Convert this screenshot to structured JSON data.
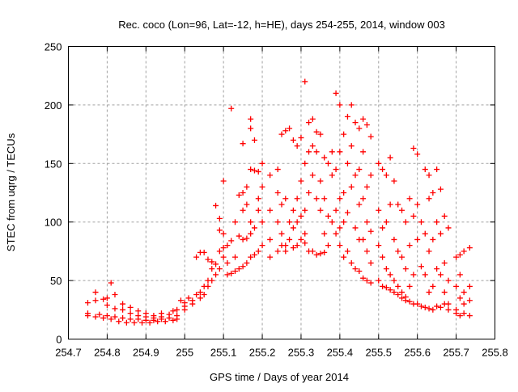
{
  "chart_data": {
    "type": "scatter",
    "title": "Rec. coco (Lon=96, Lat=-12, h=HE), days 254-255, 2014, window 003",
    "xlabel": "GPS time / Days of year 2014",
    "ylabel": "STEC from uqrg / TECUs",
    "xlim": [
      254.7,
      255.8
    ],
    "ylim": [
      0,
      250
    ],
    "grid": true,
    "legend": "none",
    "marker": "plus",
    "color": "#ff0000",
    "xticks": [
      "254.7",
      "254.8",
      "254.9",
      "255",
      "255.1",
      "255.2",
      "255.3",
      "255.4",
      "255.5",
      "255.6",
      "255.7",
      "255.8"
    ],
    "xtick_values": [
      254.7,
      254.8,
      254.9,
      255.0,
      255.1,
      255.2,
      255.3,
      255.4,
      255.5,
      255.6,
      255.7,
      255.8
    ],
    "yticks": [
      "0",
      "50",
      "100",
      "150",
      "200",
      "250"
    ],
    "ytick_values": [
      0,
      50,
      100,
      150,
      200,
      250
    ],
    "points": [
      [
        254.75,
        20
      ],
      [
        254.77,
        19
      ],
      [
        254.79,
        18
      ],
      [
        254.81,
        17
      ],
      [
        254.83,
        15
      ],
      [
        254.85,
        14
      ],
      [
        254.87,
        14
      ],
      [
        254.89,
        14
      ],
      [
        254.91,
        14
      ],
      [
        254.93,
        15
      ],
      [
        254.95,
        15
      ],
      [
        254.97,
        16
      ],
      [
        254.98,
        17
      ],
      [
        254.75,
        22
      ],
      [
        254.78,
        21
      ],
      [
        254.8,
        20
      ],
      [
        254.82,
        19
      ],
      [
        254.84,
        18
      ],
      [
        254.86,
        17
      ],
      [
        254.88,
        17
      ],
      [
        254.9,
        16
      ],
      [
        254.92,
        16
      ],
      [
        254.94,
        17
      ],
      [
        254.96,
        18
      ],
      [
        254.98,
        20
      ],
      [
        254.75,
        31
      ],
      [
        254.77,
        33
      ],
      [
        254.79,
        34
      ],
      [
        254.8,
        35
      ],
      [
        254.82,
        38
      ],
      [
        254.84,
        30
      ],
      [
        254.86,
        27
      ],
      [
        254.88,
        24
      ],
      [
        254.9,
        22
      ],
      [
        254.92,
        20
      ],
      [
        254.94,
        19
      ],
      [
        254.96,
        21
      ],
      [
        254.98,
        25
      ],
      [
        254.99,
        33
      ],
      [
        254.77,
        40
      ],
      [
        254.81,
        48
      ],
      [
        254.8,
        29
      ],
      [
        254.82,
        26
      ],
      [
        254.84,
        25
      ],
      [
        254.86,
        22
      ],
      [
        254.88,
        20
      ],
      [
        254.9,
        19
      ],
      [
        254.92,
        18
      ],
      [
        254.94,
        22
      ],
      [
        254.97,
        24
      ],
      [
        255.0,
        25
      ],
      [
        255.0,
        28
      ],
      [
        255.0,
        31
      ],
      [
        255.01,
        35
      ],
      [
        255.02,
        30
      ],
      [
        255.02,
        33
      ],
      [
        255.03,
        38
      ],
      [
        255.03,
        70
      ],
      [
        255.04,
        35
      ],
      [
        255.04,
        40
      ],
      [
        255.04,
        74
      ],
      [
        255.05,
        38
      ],
      [
        255.05,
        45
      ],
      [
        255.05,
        74
      ],
      [
        255.06,
        45
      ],
      [
        255.06,
        50
      ],
      [
        255.06,
        68
      ],
      [
        255.07,
        50
      ],
      [
        255.07,
        60
      ],
      [
        255.07,
        66
      ],
      [
        255.08,
        55
      ],
      [
        255.08,
        64
      ],
      [
        255.08,
        114
      ],
      [
        255.09,
        60
      ],
      [
        255.09,
        75
      ],
      [
        255.09,
        103
      ],
      [
        255.09,
        93
      ],
      [
        255.1,
        70
      ],
      [
        255.1,
        78
      ],
      [
        255.1,
        90
      ],
      [
        255.1,
        135
      ],
      [
        255.11,
        55
      ],
      [
        255.11,
        65
      ],
      [
        255.11,
        80
      ],
      [
        255.12,
        56
      ],
      [
        255.12,
        197
      ],
      [
        255.12,
        84
      ],
      [
        255.13,
        58
      ],
      [
        255.13,
        70
      ],
      [
        255.13,
        100
      ],
      [
        255.14,
        60
      ],
      [
        255.14,
        88
      ],
      [
        255.14,
        123
      ],
      [
        255.15,
        62
      ],
      [
        255.15,
        85
      ],
      [
        255.15,
        110
      ],
      [
        255.15,
        125
      ],
      [
        255.15,
        167
      ],
      [
        255.16,
        65
      ],
      [
        255.16,
        86
      ],
      [
        255.16,
        115
      ],
      [
        255.16,
        130
      ],
      [
        255.17,
        70
      ],
      [
        255.17,
        90
      ],
      [
        255.17,
        100
      ],
      [
        255.17,
        145
      ],
      [
        255.17,
        180
      ],
      [
        255.17,
        188
      ],
      [
        255.18,
        72
      ],
      [
        255.18,
        95
      ],
      [
        255.18,
        144
      ],
      [
        255.18,
        170
      ],
      [
        255.19,
        75
      ],
      [
        255.19,
        110
      ],
      [
        255.19,
        143
      ],
      [
        255.19,
        120
      ],
      [
        255.2,
        80
      ],
      [
        255.2,
        100
      ],
      [
        255.2,
        130
      ],
      [
        255.2,
        150
      ],
      [
        255.22,
        140
      ],
      [
        255.22,
        110
      ],
      [
        255.22,
        85
      ],
      [
        255.22,
        70
      ],
      [
        255.24,
        145
      ],
      [
        255.24,
        125
      ],
      [
        255.24,
        100
      ],
      [
        255.24,
        75
      ],
      [
        255.25,
        175
      ],
      [
        255.25,
        115
      ],
      [
        255.25,
        90
      ],
      [
        255.25,
        80
      ],
      [
        255.26,
        178
      ],
      [
        255.26,
        120
      ],
      [
        255.26,
        80
      ],
      [
        255.26,
        75
      ],
      [
        255.27,
        180
      ],
      [
        255.27,
        100
      ],
      [
        255.27,
        85
      ],
      [
        255.28,
        170
      ],
      [
        255.28,
        110
      ],
      [
        255.28,
        95
      ],
      [
        255.28,
        78
      ],
      [
        255.29,
        165
      ],
      [
        255.29,
        120
      ],
      [
        255.29,
        100
      ],
      [
        255.29,
        80
      ],
      [
        255.3,
        172
      ],
      [
        255.3,
        135
      ],
      [
        255.3,
        105
      ],
      [
        255.3,
        85
      ],
      [
        255.31,
        220
      ],
      [
        255.31,
        150
      ],
      [
        255.31,
        110
      ],
      [
        255.31,
        90
      ],
      [
        255.31,
        82
      ],
      [
        255.32,
        185
      ],
      [
        255.32,
        160
      ],
      [
        255.32,
        125
      ],
      [
        255.32,
        75
      ],
      [
        255.33,
        188
      ],
      [
        255.33,
        165
      ],
      [
        255.33,
        140
      ],
      [
        255.33,
        75
      ],
      [
        255.34,
        177
      ],
      [
        255.34,
        160
      ],
      [
        255.34,
        120
      ],
      [
        255.34,
        72
      ],
      [
        255.35,
        175
      ],
      [
        255.35,
        135
      ],
      [
        255.35,
        110
      ],
      [
        255.35,
        73
      ],
      [
        255.36,
        155
      ],
      [
        255.36,
        120
      ],
      [
        255.36,
        90
      ],
      [
        255.36,
        74
      ],
      [
        255.37,
        150
      ],
      [
        255.37,
        105
      ],
      [
        255.37,
        80
      ],
      [
        255.38,
        160
      ],
      [
        255.38,
        140
      ],
      [
        255.38,
        100
      ],
      [
        255.39,
        210
      ],
      [
        255.39,
        145
      ],
      [
        255.39,
        110
      ],
      [
        255.39,
        90
      ],
      [
        255.4,
        200
      ],
      [
        255.4,
        160
      ],
      [
        255.4,
        120
      ],
      [
        255.4,
        95
      ],
      [
        255.4,
        80
      ],
      [
        255.41,
        175
      ],
      [
        255.41,
        125
      ],
      [
        255.41,
        100
      ],
      [
        255.41,
        70
      ],
      [
        255.42,
        190
      ],
      [
        255.42,
        150
      ],
      [
        255.42,
        108
      ],
      [
        255.42,
        75
      ],
      [
        255.43,
        200
      ],
      [
        255.43,
        165
      ],
      [
        255.43,
        130
      ],
      [
        255.43,
        65
      ],
      [
        255.44,
        185
      ],
      [
        255.44,
        140
      ],
      [
        255.44,
        95
      ],
      [
        255.44,
        60
      ],
      [
        255.45,
        180
      ],
      [
        255.45,
        145
      ],
      [
        255.45,
        115
      ],
      [
        255.45,
        85
      ],
      [
        255.45,
        58
      ],
      [
        255.46,
        188
      ],
      [
        255.46,
        160
      ],
      [
        255.46,
        120
      ],
      [
        255.46,
        85
      ],
      [
        255.46,
        52
      ],
      [
        255.47,
        183
      ],
      [
        255.47,
        130
      ],
      [
        255.47,
        100
      ],
      [
        255.47,
        75
      ],
      [
        255.47,
        50
      ],
      [
        255.48,
        173
      ],
      [
        255.48,
        140
      ],
      [
        255.48,
        92
      ],
      [
        255.48,
        65
      ],
      [
        255.48,
        48
      ],
      [
        255.5,
        150
      ],
      [
        255.5,
        110
      ],
      [
        255.5,
        80
      ],
      [
        255.5,
        50
      ],
      [
        255.51,
        145
      ],
      [
        255.51,
        95
      ],
      [
        255.51,
        70
      ],
      [
        255.51,
        45
      ],
      [
        255.52,
        140
      ],
      [
        255.52,
        100
      ],
      [
        255.52,
        60
      ],
      [
        255.52,
        44
      ],
      [
        255.53,
        155
      ],
      [
        255.53,
        115
      ],
      [
        255.53,
        55
      ],
      [
        255.53,
        42
      ],
      [
        255.54,
        135
      ],
      [
        255.54,
        85
      ],
      [
        255.54,
        50
      ],
      [
        255.54,
        40
      ],
      [
        255.55,
        115
      ],
      [
        255.55,
        75
      ],
      [
        255.55,
        45
      ],
      [
        255.55,
        38
      ],
      [
        255.56,
        110
      ],
      [
        255.56,
        70
      ],
      [
        255.56,
        40
      ],
      [
        255.56,
        35
      ],
      [
        255.57,
        100
      ],
      [
        255.57,
        60
      ],
      [
        255.57,
        36
      ],
      [
        255.57,
        33
      ],
      [
        255.58,
        120
      ],
      [
        255.58,
        80
      ],
      [
        255.58,
        45
      ],
      [
        255.58,
        32
      ],
      [
        255.59,
        163
      ],
      [
        255.59,
        105
      ],
      [
        255.59,
        55
      ],
      [
        255.59,
        30
      ],
      [
        255.6,
        158
      ],
      [
        255.6,
        115
      ],
      [
        255.6,
        85
      ],
      [
        255.6,
        30
      ],
      [
        255.61,
        100
      ],
      [
        255.61,
        62
      ],
      [
        255.61,
        28
      ],
      [
        255.62,
        145
      ],
      [
        255.62,
        90
      ],
      [
        255.62,
        55
      ],
      [
        255.62,
        27
      ],
      [
        255.63,
        140
      ],
      [
        255.63,
        120
      ],
      [
        255.63,
        75
      ],
      [
        255.63,
        40
      ],
      [
        255.63,
        26
      ],
      [
        255.64,
        125
      ],
      [
        255.64,
        85
      ],
      [
        255.64,
        45
      ],
      [
        255.64,
        25
      ],
      [
        255.65,
        145
      ],
      [
        255.65,
        100
      ],
      [
        255.65,
        60
      ],
      [
        255.65,
        28
      ],
      [
        255.66,
        128
      ],
      [
        255.66,
        90
      ],
      [
        255.66,
        55
      ],
      [
        255.66,
        27
      ],
      [
        255.67,
        105
      ],
      [
        255.67,
        65
      ],
      [
        255.67,
        40
      ],
      [
        255.67,
        30
      ],
      [
        255.68,
        95
      ],
      [
        255.68,
        50
      ],
      [
        255.68,
        30
      ],
      [
        255.68,
        25
      ],
      [
        255.7,
        70
      ],
      [
        255.7,
        45
      ],
      [
        255.7,
        25
      ],
      [
        255.7,
        22
      ],
      [
        255.71,
        72
      ],
      [
        255.71,
        55
      ],
      [
        255.71,
        35
      ],
      [
        255.71,
        20
      ],
      [
        255.72,
        75
      ],
      [
        255.72,
        40
      ],
      [
        255.72,
        30
      ],
      [
        255.72,
        22
      ],
      [
        255.735,
        78
      ],
      [
        255.735,
        45
      ],
      [
        255.735,
        33
      ],
      [
        255.735,
        20
      ]
    ]
  }
}
